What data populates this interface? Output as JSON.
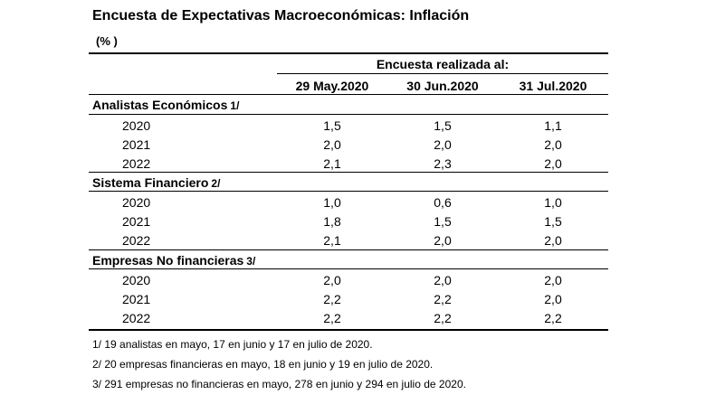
{
  "title": "Encuesta de Expectativas Macroeconómicas: Inflación",
  "unit": "(% )",
  "survey_header": "Encuesta realizada al:",
  "columns": [
    "29 May.2020",
    "30 Jun.2020",
    "31 Jul.2020"
  ],
  "sections": [
    {
      "label": "Analistas Económicos",
      "note": "1/",
      "rows": [
        {
          "year": "2020",
          "values": [
            "1,5",
            "1,5",
            "1,1"
          ]
        },
        {
          "year": "2021",
          "values": [
            "2,0",
            "2,0",
            "2,0"
          ]
        },
        {
          "year": "2022",
          "values": [
            "2,1",
            "2,3",
            "2,0"
          ]
        }
      ]
    },
    {
      "label": "Sistema Financiero",
      "note": "2/",
      "rows": [
        {
          "year": "2020",
          "values": [
            "1,0",
            "0,6",
            "1,0"
          ]
        },
        {
          "year": "2021",
          "values": [
            "1,8",
            "1,5",
            "1,5"
          ]
        },
        {
          "year": "2022",
          "values": [
            "2,1",
            "2,0",
            "2,0"
          ]
        }
      ]
    },
    {
      "label": "Empresas No financieras",
      "note": "3/",
      "rows": [
        {
          "year": "2020",
          "values": [
            "2,0",
            "2,0",
            "2,0"
          ]
        },
        {
          "year": "2021",
          "values": [
            "2,2",
            "2,2",
            "2,0"
          ]
        },
        {
          "year": "2022",
          "values": [
            "2,2",
            "2,2",
            "2,2"
          ]
        }
      ]
    }
  ],
  "footnotes": [
    "1/  19 analistas en mayo, 17 en junio y 17 en julio de 2020.",
    "2/  20 empresas financieras en mayo, 18 en junio y 19 en julio de 2020.",
    "3/  291 empresas no financieras en mayo, 278 en junio y 294 en julio de 2020."
  ]
}
